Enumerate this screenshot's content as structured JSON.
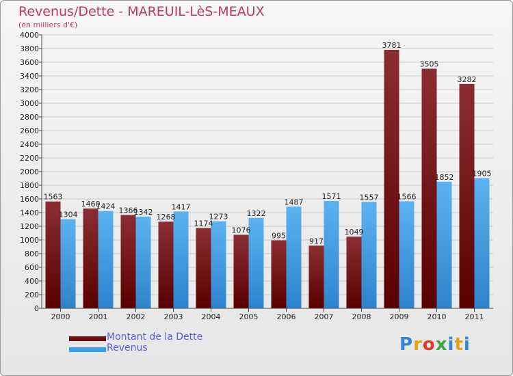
{
  "title": "Revenus/Dette - MAREUIL-LèS-MEAUX",
  "subtitle": "(en milliers d'€)",
  "logo": {
    "text": "Proxiti",
    "letter_colors": [
      "#2f86d6",
      "#e8a21a",
      "#e23a2a",
      "#3aa83a",
      "#2f86d6",
      "#e8a21a",
      "#2f86d6"
    ]
  },
  "chart_data": {
    "type": "bar",
    "categories": [
      "2000",
      "2001",
      "2002",
      "2003",
      "2004",
      "2005",
      "2006",
      "2007",
      "2008",
      "2009",
      "2010",
      "2011"
    ],
    "series": [
      {
        "name": "Montant de la Dette",
        "color": "#6b0d12",
        "values": [
          1563,
          1460,
          1366,
          1268,
          1174,
          1076,
          995,
          917,
          1049,
          3781,
          3505,
          3282
        ]
      },
      {
        "name": "Revenus",
        "color": "#3a9de8",
        "values": [
          1304,
          1424,
          1342,
          1417,
          1273,
          1322,
          1487,
          1571,
          1557,
          1566,
          1852,
          1905
        ]
      }
    ],
    "ylim": [
      0,
      4000
    ],
    "yticks": [
      0,
      200,
      400,
      600,
      800,
      1000,
      1200,
      1400,
      1600,
      1800,
      2000,
      2200,
      2400,
      2600,
      2800,
      3000,
      3200,
      3400,
      3600,
      3800,
      4000
    ],
    "grid": true,
    "legend_position": "bottom-left"
  }
}
